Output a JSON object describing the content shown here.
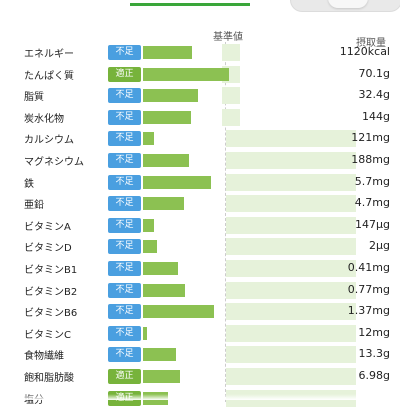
{
  "header": {
    "reference_label": "基準値",
    "amount_label": "摂取量"
  },
  "colors": {
    "short": "#4a9fe0",
    "ok": "#77b33b",
    "bar": "#8cc152",
    "track": "#e6f2da"
  },
  "nutrients": [
    {
      "name": "エネルギー",
      "status": "不足",
      "status_type": "short",
      "amount": "1120kcal",
      "fraction": 0.6
    },
    {
      "name": "たんぱく質",
      "status": "適正",
      "status_type": "ok",
      "amount": "70.1g",
      "fraction": 1.05
    },
    {
      "name": "脂質",
      "status": "不足",
      "status_type": "short",
      "amount": "32.4g",
      "fraction": 0.67
    },
    {
      "name": "炭水化物",
      "status": "不足",
      "status_type": "short",
      "amount": "144g",
      "fraction": 0.58
    },
    {
      "name": "カルシウム",
      "status": "不足",
      "status_type": "short",
      "amount": "121mg",
      "fraction": 0.14
    },
    {
      "name": "マグネシウム",
      "status": "不足",
      "status_type": "short",
      "amount": "188mg",
      "fraction": 0.56
    },
    {
      "name": "鉄",
      "status": "不足",
      "status_type": "short",
      "amount": "5.7mg",
      "fraction": 0.83
    },
    {
      "name": "亜鉛",
      "status": "不足",
      "status_type": "short",
      "amount": "4.7mg",
      "fraction": 0.5
    },
    {
      "name": "ビタミンA",
      "status": "不足",
      "status_type": "short",
      "amount": "147μg",
      "fraction": 0.14
    },
    {
      "name": "ビタミンD",
      "status": "不足",
      "status_type": "short",
      "amount": "2μg",
      "fraction": 0.17
    },
    {
      "name": "ビタミンB1",
      "status": "不足",
      "status_type": "short",
      "amount": "0.41mg",
      "fraction": 0.43
    },
    {
      "name": "ビタミンB2",
      "status": "不足",
      "status_type": "short",
      "amount": "0.77mg",
      "fraction": 0.51
    },
    {
      "name": "ビタミンB6",
      "status": "不足",
      "status_type": "short",
      "amount": "1.37mg",
      "fraction": 0.87
    },
    {
      "name": "ビタミンC",
      "status": "不足",
      "status_type": "short",
      "amount": "12mg",
      "fraction": 0.05
    },
    {
      "name": "食物繊維",
      "status": "不足",
      "status_type": "short",
      "amount": "13.3g",
      "fraction": 0.4
    },
    {
      "name": "飽和脂肪酸",
      "status": "適正",
      "status_type": "ok",
      "amount": "6.98g",
      "fraction": 0.45
    },
    {
      "name": "塩分",
      "status": "適正",
      "status_type": "ok",
      "amount": "",
      "fraction": 0.3
    }
  ]
}
